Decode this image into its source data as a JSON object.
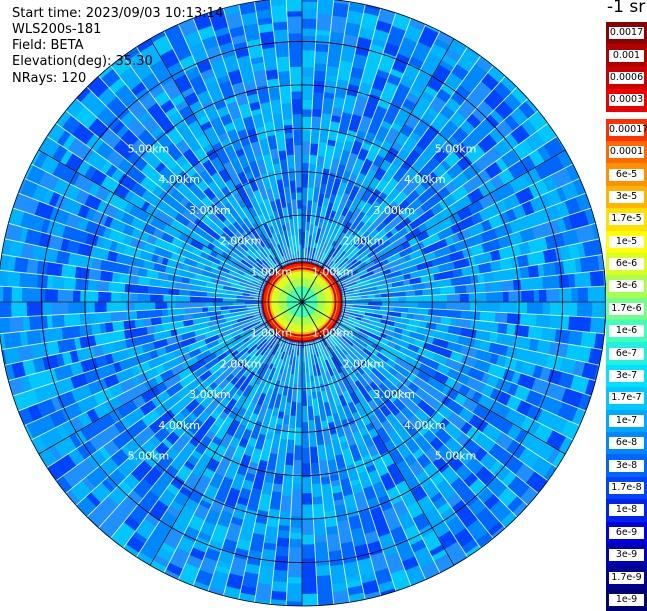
{
  "header": {
    "start_time": "Start time: 2023/09/03 10:13:14",
    "instrument": "WLS200s-181",
    "field": "Field: BETA",
    "elevation": "Elevation(deg): 35.30",
    "nrays": "NRays: 120"
  },
  "colorbar": {
    "unit": "-1 sr",
    "upper_labels": [
      "0.0017",
      "0.001",
      "0.0006",
      "0.0003"
    ],
    "upper_colors": [
      "#8b0000",
      "#b00000",
      "#d10000",
      "#ee0000"
    ],
    "lower_labels": [
      "0.00017",
      "0.0001",
      "6e-5",
      "3e-5",
      "1.7e-5",
      "1e-5",
      "6e-6",
      "3e-6",
      "1.7e-6",
      "1e-6",
      "6e-7",
      "3e-7",
      "1.7e-7",
      "1e-7",
      "6e-8",
      "3e-8",
      "1.7e-8",
      "1e-8",
      "6e-9",
      "3e-9",
      "1.7e-9",
      "1e-9"
    ],
    "lower_colors": [
      "#ff3000",
      "#ff6a00",
      "#ff9000",
      "#ffb400",
      "#ffe000",
      "#ffff00",
      "#d8ff20",
      "#a8ff50",
      "#70ff88",
      "#40ffb8",
      "#20f0e0",
      "#00e0ff",
      "#00c8ff",
      "#00a8ff",
      "#0088ff",
      "#0066ff",
      "#0044ff",
      "#0022ee",
      "#0000dd",
      "#0000b8",
      "#000090",
      "#000070"
    ]
  },
  "chart_data": {
    "type": "heatmap",
    "title": "",
    "ring_labels_km": [
      "1.00km",
      "2.00km",
      "3.00km",
      "4.00km",
      "5.00km"
    ],
    "ring_radii_km": [
      1,
      2,
      3,
      4,
      5
    ],
    "max_range_km": 7.0,
    "n_rays": 120,
    "near_field_max_km": 0.82,
    "cloud_ring_km": [
      0.82,
      0.95
    ],
    "background_level": "1e-8",
    "near_field_level": "1e-6",
    "cloud_ring_level": "0.0003"
  }
}
